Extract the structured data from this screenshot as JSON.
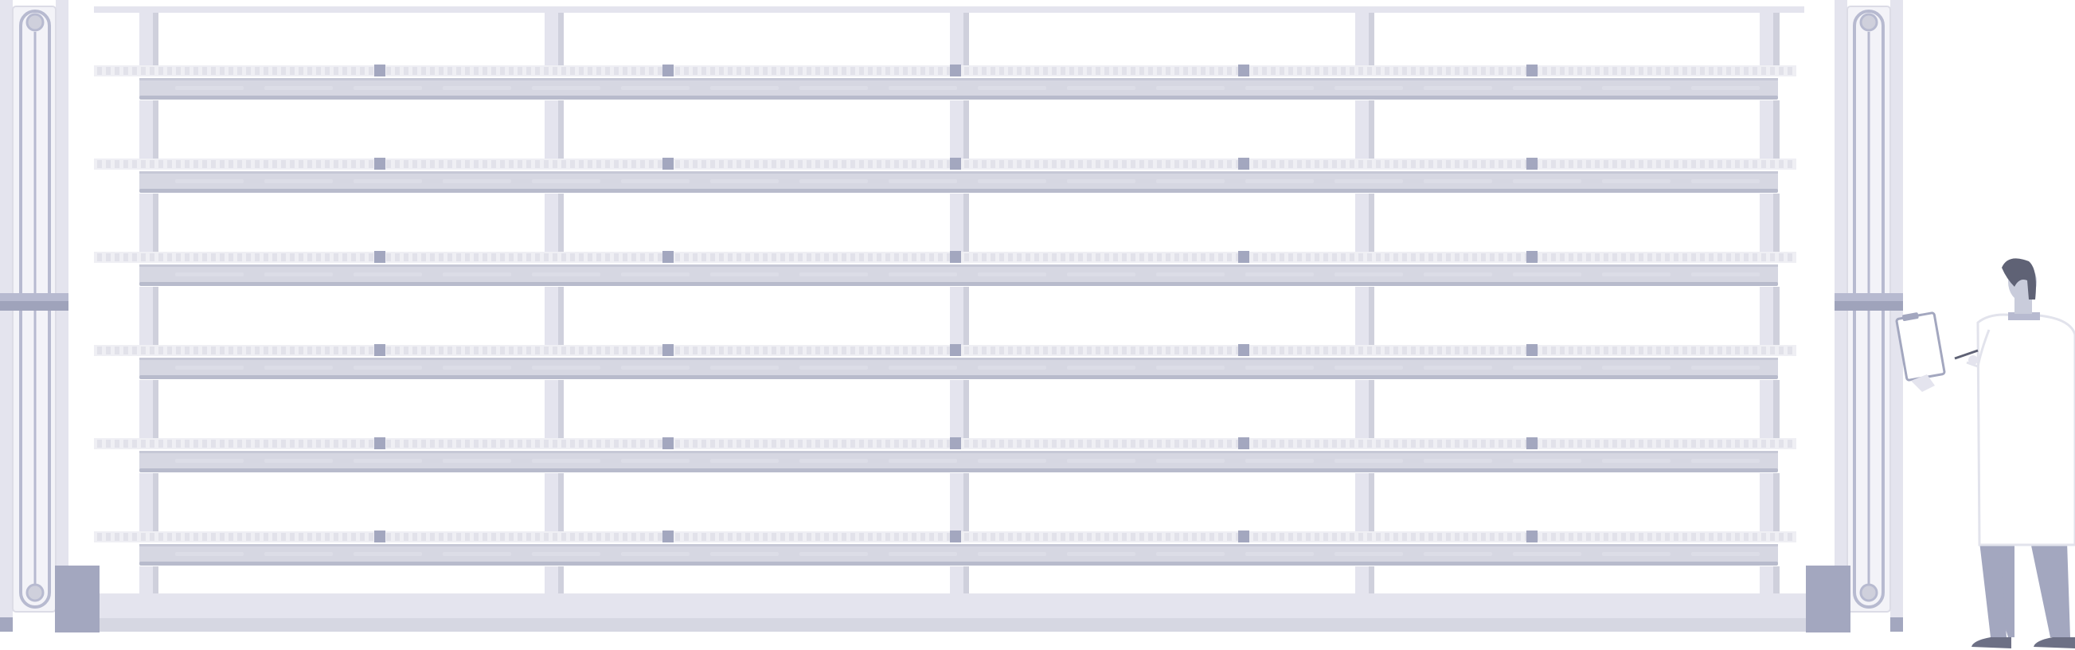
{
  "scene": {
    "description_visible_text": [],
    "colors": {
      "background": "#ffffff",
      "frame_light": "#e4e4ee",
      "frame_mid": "#cfd0dc",
      "frame_dark": "#a3a7bf",
      "shelf_edge": "#b8bbcc",
      "person_skin": "#c9ccdb",
      "person_hair": "#5f6275",
      "person_pants": "#a3a7bf",
      "person_shoes": "#6d7085",
      "coat": "#ffffff",
      "coat_outline": "#e2e3ec"
    },
    "icons": [
      "left-lift-icon",
      "right-lift-icon",
      "storage-rack-icon",
      "worker-with-clipboard-icon"
    ],
    "shelf_levels": 6,
    "rack_columns": 5
  }
}
